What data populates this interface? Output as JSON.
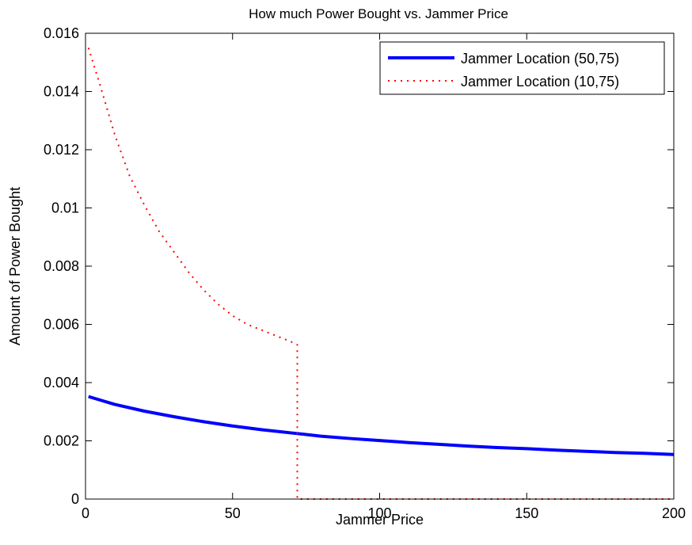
{
  "chart_data": {
    "type": "line",
    "title": "How much Power Bought vs. Jammer Price",
    "xlabel": "Jammer Price",
    "ylabel": "Amount of Power Bought",
    "xlim": [
      0,
      200
    ],
    "ylim": [
      0,
      0.016
    ],
    "x_ticks": [
      0,
      50,
      100,
      150,
      200
    ],
    "x_tick_labels": [
      "0",
      "50",
      "100",
      "150",
      "200"
    ],
    "y_ticks": [
      0,
      0.002,
      0.004,
      0.006,
      0.008,
      0.01,
      0.012,
      0.014,
      0.016
    ],
    "y_tick_labels": [
      "0",
      "0.002",
      "0.004",
      "0.006",
      "0.008",
      "0.01",
      "0.012",
      "0.014",
      "0.016"
    ],
    "grid": false,
    "legend_position": "top-right",
    "series": [
      {
        "name": "Jammer Location (50,75)",
        "color": "#0000ff",
        "style": "solid",
        "x": [
          1,
          10,
          20,
          30,
          40,
          50,
          60,
          72,
          80,
          90,
          100,
          110,
          120,
          130,
          140,
          150,
          160,
          170,
          180,
          190,
          200
        ],
        "y": [
          0.00352,
          0.00325,
          0.00302,
          0.00283,
          0.00266,
          0.00251,
          0.00238,
          0.00225,
          0.00216,
          0.00208,
          0.00201,
          0.00194,
          0.00188,
          0.00182,
          0.00177,
          0.00173,
          0.00168,
          0.00164,
          0.0016,
          0.00157,
          0.00153
        ]
      },
      {
        "name": "Jammer Location (10,75)",
        "color": "#ff0000",
        "style": "dotted",
        "x": [
          1,
          5,
          10,
          15,
          20,
          25,
          30,
          35,
          40,
          45,
          50,
          55,
          60,
          65,
          70,
          72,
          72,
          80,
          100,
          120,
          140,
          160,
          180,
          200
        ],
        "y": [
          0.0155,
          0.0142,
          0.0125,
          0.0111,
          0.0101,
          0.0092,
          0.0085,
          0.0078,
          0.0072,
          0.0067,
          0.0063,
          0.006,
          0.0058,
          0.0056,
          0.0054,
          0.0053,
          0,
          0,
          0,
          0,
          0,
          0,
          0,
          0
        ]
      }
    ]
  }
}
